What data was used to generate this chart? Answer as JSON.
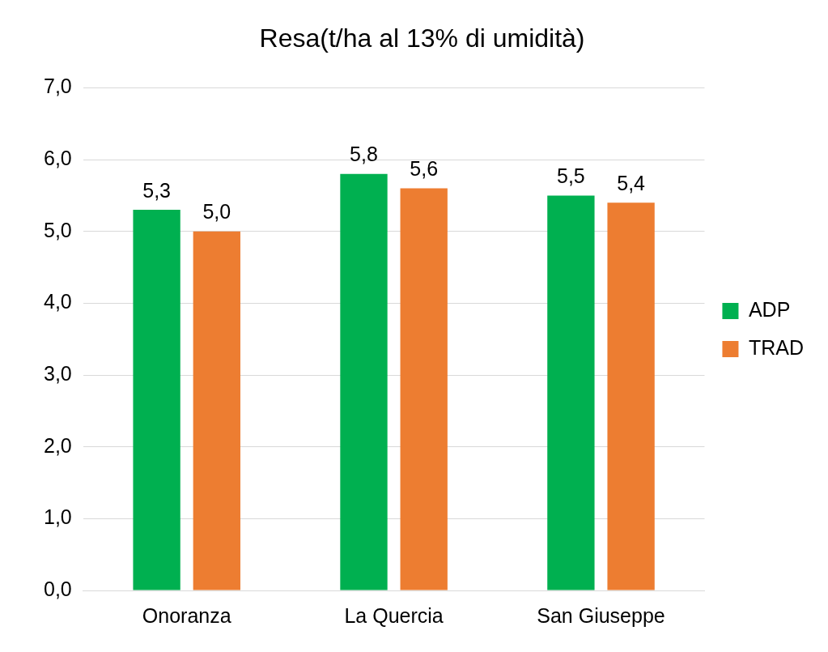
{
  "chart_data": {
    "type": "bar",
    "title": "Resa(t/ha al 13% di umidità)",
    "categories": [
      "Onoranza",
      "La Quercia",
      "San Giuseppe"
    ],
    "series": [
      {
        "name": "ADP",
        "color": "#00b050",
        "values": [
          5.3,
          5.8,
          5.5
        ],
        "value_labels": [
          "5,3",
          "5,8",
          "5,5"
        ]
      },
      {
        "name": "TRAD",
        "color": "#ed7d31",
        "values": [
          5.0,
          5.6,
          5.4
        ],
        "value_labels": [
          "5,0",
          "5,6",
          "5,4"
        ]
      }
    ],
    "ylim": [
      0,
      7
    ],
    "yticks": [
      {
        "value": 0,
        "label": "0,0"
      },
      {
        "value": 1,
        "label": "1,0"
      },
      {
        "value": 2,
        "label": "2,0"
      },
      {
        "value": 3,
        "label": "3,0"
      },
      {
        "value": 4,
        "label": "4,0"
      },
      {
        "value": 5,
        "label": "5,0"
      },
      {
        "value": 6,
        "label": "6,0"
      },
      {
        "value": 7,
        "label": "7,0"
      }
    ],
    "grid": "y",
    "legend": "right"
  }
}
